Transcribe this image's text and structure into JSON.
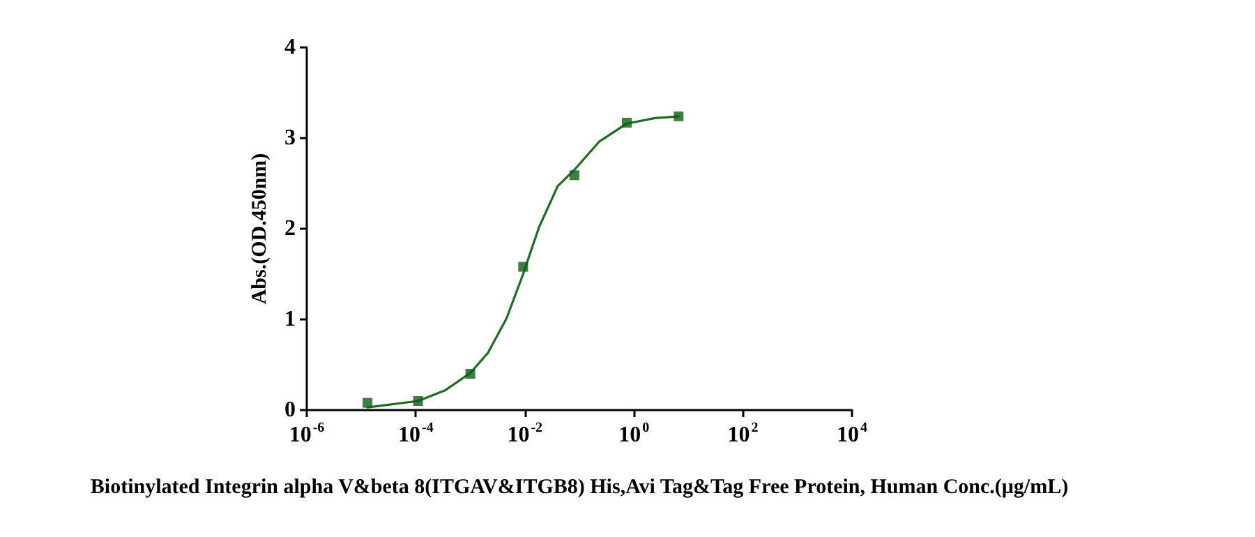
{
  "chart_data": {
    "type": "scatter",
    "xlabel": "Biotinylated Integrin alpha V&beta 8(ITGAV&ITGB8) His,Avi Tag&Tag Free Protein, Human Conc.(μg/mL)",
    "ylabel": "Abs.(OD.450nm)",
    "log": "x",
    "grid": false,
    "xlim": [
      1e-06,
      10000
    ],
    "xticks": [
      {
        "value": 1e-06,
        "label": "10$^{-6}$"
      },
      {
        "value": 0.0001,
        "label": "10$^{-4}$"
      },
      {
        "value": 0.01,
        "label": "10$^{-2}$"
      },
      {
        "value": 1,
        "label": "10$^{0}$"
      },
      {
        "value": 100,
        "label": "10$^{2}$"
      },
      {
        "value": 10000,
        "label": "10$^{4}$"
      }
    ],
    "ylim": [
      0,
      4
    ],
    "yticks": [
      0,
      1,
      2,
      3,
      4
    ],
    "series": [
      {
        "marker": "square",
        "color": "#0d5e12",
        "x": [
          1.3e-05,
          0.00011,
          0.001,
          0.0093,
          0.081,
          0.74,
          6.6
        ],
        "values": [
          0.08,
          0.1,
          0.4,
          1.58,
          2.59,
          3.17,
          3.24
        ]
      },
      {
        "type": "line",
        "marker": "none",
        "line_style": "solid",
        "color": "#1e6b22",
        "x": [
          1.3e-05,
          0.00011,
          0.00035,
          0.001,
          0.0021,
          0.0046,
          0.0093,
          0.018,
          0.04,
          0.081,
          0.23,
          0.74,
          2.4,
          6.6
        ],
        "values": [
          0.03,
          0.1,
          0.22,
          0.41,
          0.63,
          1.01,
          1.5,
          2.01,
          2.47,
          2.65,
          2.96,
          3.16,
          3.22,
          3.24
        ]
      }
    ]
  }
}
